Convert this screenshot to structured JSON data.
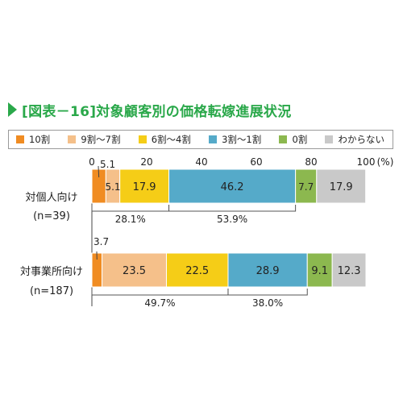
{
  "title": "[図表－16]対象顧客別の価格転嫁進展状況",
  "chart_data": {
    "type": "bar",
    "orientation": "horizontal",
    "stacked": true,
    "xlim": [
      0,
      100
    ],
    "x_ticks": [
      "0",
      "20",
      "40",
      "60",
      "80",
      "100"
    ],
    "x_unit": "(%)",
    "categories": [
      "対個人向け\n(n=39)",
      "対事業所向け\n(n=187)"
    ],
    "series": [
      {
        "name": "10割",
        "color": "#f08c22",
        "values": [
          5.1,
          3.7
        ]
      },
      {
        "name": "9割〜7割",
        "color": "#f5c08a",
        "values": [
          5.1,
          23.5
        ]
      },
      {
        "name": "6割〜4割",
        "color": "#f5cd17",
        "values": [
          17.9,
          22.5
        ]
      },
      {
        "name": "3割〜1割",
        "color": "#55aac9",
        "values": [
          46.2,
          28.9
        ]
      },
      {
        "name": "0割",
        "color": "#8cb84f",
        "values": [
          7.7,
          9.1
        ]
      },
      {
        "name": "わからない",
        "color": "#c9c9c9",
        "values": [
          17.9,
          12.3
        ]
      }
    ],
    "data_labels": [
      [
        "5.1",
        "5.1",
        "17.9",
        "46.2",
        "7.7",
        "17.9"
      ],
      [
        "3.7",
        "23.5",
        "22.5",
        "28.9",
        "9.1",
        "12.3"
      ]
    ],
    "brackets": [
      [
        "28.1%",
        "53.9%"
      ],
      [
        "49.7%",
        "38.0%"
      ]
    ]
  }
}
